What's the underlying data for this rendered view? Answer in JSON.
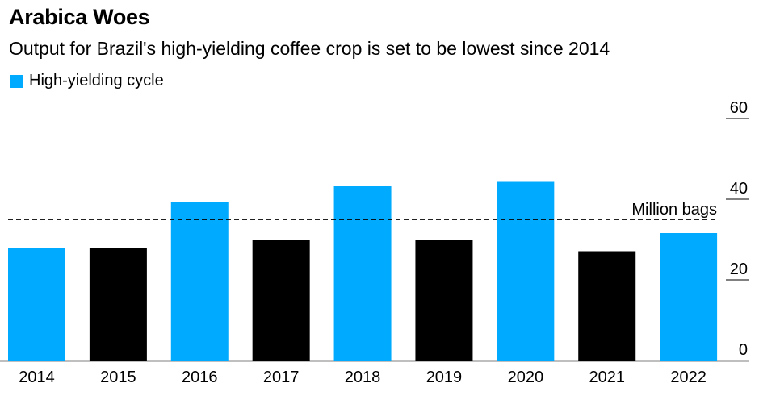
{
  "colors": {
    "high": "#00aaff",
    "low": "#000000",
    "background": "#ffffff"
  },
  "chart_data": {
    "type": "bar",
    "title": "Arabica Woes",
    "subtitle": "Output for Brazil's high-yielding coffee crop is set to be lowest since 2014",
    "legend": [
      {
        "label": "High-yielding cycle",
        "color": "#00aaff"
      }
    ],
    "unit_label": "Million bags",
    "categories": [
      "2014",
      "2015",
      "2016",
      "2017",
      "2018",
      "2019",
      "2020",
      "2021",
      "2022"
    ],
    "values": [
      28.0,
      27.8,
      39.2,
      30.0,
      43.2,
      29.8,
      44.3,
      27.1,
      31.6
    ],
    "high_yielding": [
      true,
      false,
      true,
      false,
      true,
      false,
      true,
      false,
      true
    ],
    "reference_line": {
      "value": 35.0,
      "style": "dashed"
    },
    "ylim": [
      0,
      60
    ],
    "yticks": [
      0,
      20,
      40,
      60
    ],
    "xlabel": "",
    "ylabel": ""
  }
}
